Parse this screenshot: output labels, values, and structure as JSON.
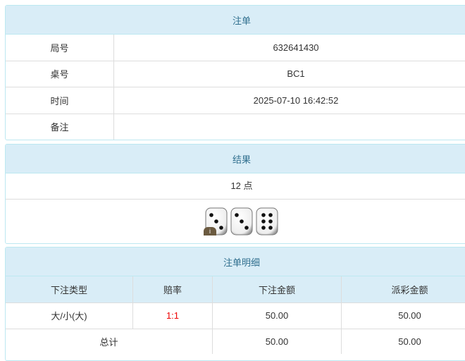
{
  "order": {
    "title": "注单",
    "rows": [
      {
        "label": "局号",
        "value": "632641430"
      },
      {
        "label": "桌号",
        "value": "BC1"
      },
      {
        "label": "时间",
        "value": "2025-07-10 16:42:52"
      },
      {
        "label": "备注",
        "value": ""
      }
    ]
  },
  "result": {
    "title": "结果",
    "points": "12 点",
    "dice": [
      3,
      3,
      6
    ],
    "info_badge": "i"
  },
  "detail": {
    "title": "注单明细",
    "headers": [
      "下注类型",
      "赔率",
      "下注金额",
      "派彩金额"
    ],
    "rows": [
      {
        "type": "大/小(大)",
        "odds": "1:1",
        "bet": "50.00",
        "payout": "50.00"
      }
    ],
    "total": {
      "label": "总计",
      "bet": "50.00",
      "payout": "50.00"
    }
  },
  "colors": {
    "header_bg": "#d9edf7",
    "header_text": "#31708f",
    "odds": "#e00000"
  }
}
